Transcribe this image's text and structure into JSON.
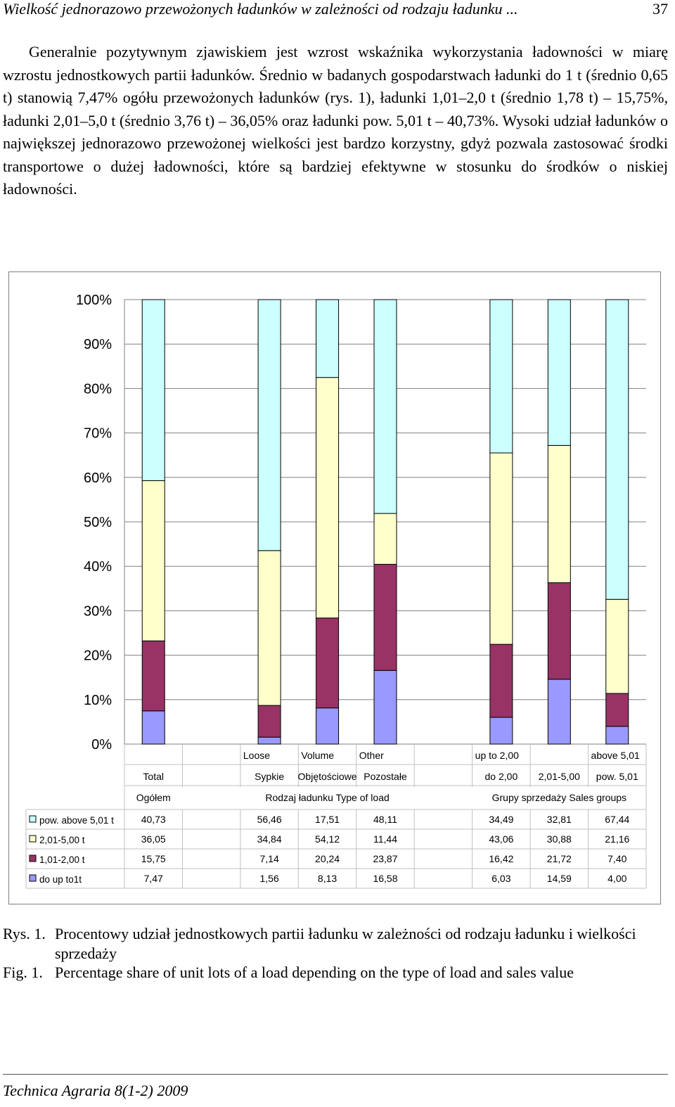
{
  "header": {
    "title": "Wielkość jednorazowo przewożonych ładunków w zależności od rodzaju ładunku ...",
    "page_number": "37"
  },
  "body_text": "Generalnie pozytywnym zjawiskiem jest wzrost wskaźnika wykorzystania ładowności w miarę wzrostu jednostkowych partii ładunków. Średnio w badanych gospodarstwach ładunki do 1 t (średnio 0,65 t) stanowią 7,47% ogółu przewożonych ładunków (rys. 1), ładunki 1,01–2,0 t (średnio 1,78 t) – 15,75%, ładunki 2,01–5,0 t (średnio 3,76 t) – 36,05% oraz ładunki pow. 5,01 t – 40,73%. Wysoki udział ładunków o największej jednorazowo przewożonej wielkości jest bardzo korzystny, gdyż pozwala zastosować środki transportowe o dużej ładowności, które są bardziej efektywne w stosunku do środków o niskiej ładowności.",
  "chart_data": {
    "type": "bar",
    "stacked": true,
    "ylim": [
      0,
      100
    ],
    "yticks": [
      "0%",
      "10%",
      "20%",
      "30%",
      "40%",
      "50%",
      "60%",
      "70%",
      "80%",
      "90%",
      "100%"
    ],
    "categories": [
      "Total Ogółem",
      "Loose Sypkie",
      "Volume Objętościowe",
      "Other Pozostałe",
      "up to 2,00 do 2,00",
      "2,01-5,00",
      "above 5,01 pow. 5,01"
    ],
    "category_labels_row1": [
      "",
      "Loose",
      "Volume",
      "Other",
      "up to 2,00",
      "",
      "above 5,01"
    ],
    "category_labels_row2": [
      "Total",
      "Sypkie",
      "Objętościowe",
      "Pozostałe",
      "do 2,00",
      "2,01-5,00",
      "pow. 5,01"
    ],
    "group_labels": [
      {
        "label": "Ogółem",
        "span": [
          0,
          0
        ]
      },
      {
        "label": "Rodzaj ładunku Type of load",
        "span": [
          1,
          3
        ]
      },
      {
        "label": "Grupy sprzedaży Sales groups",
        "span": [
          4,
          6
        ]
      }
    ],
    "series": [
      {
        "name": "do up to1t",
        "color": "#9999ff",
        "values": [
          7.47,
          1.56,
          8.13,
          16.58,
          6.03,
          14.59,
          4.0
        ],
        "labels": [
          "7,47",
          "1,56",
          "8,13",
          "16,58",
          "6,03",
          "14,59",
          "4,00"
        ]
      },
      {
        "name": "1,01-2,00 t",
        "color": "#993366",
        "values": [
          15.75,
          7.14,
          20.24,
          23.87,
          16.42,
          21.72,
          7.4
        ],
        "labels": [
          "15,75",
          "7,14",
          "20,24",
          "23,87",
          "16,42",
          "21,72",
          "7,40"
        ]
      },
      {
        "name": "2,01-5,00 t",
        "color": "#ffffcc",
        "values": [
          36.05,
          34.84,
          54.12,
          11.44,
          43.06,
          30.88,
          21.16
        ],
        "labels": [
          "36,05",
          "34,84",
          "54,12",
          "11,44",
          "43,06",
          "30,88",
          "21,16"
        ]
      },
      {
        "name": "pow. above 5,01 t",
        "color": "#ccffff",
        "values": [
          40.73,
          56.46,
          17.51,
          48.11,
          34.49,
          32.81,
          67.44
        ],
        "labels": [
          "40,73",
          "56,46",
          "17,51",
          "48,11",
          "34,49",
          "32,81",
          "67,44"
        ]
      }
    ],
    "table_row_order": [
      3,
      2,
      1,
      0
    ],
    "grid": true
  },
  "caption": {
    "rys_label": "Rys. 1.",
    "rys_text": "Procentowy udział jednostkowych partii ładunku w zależności od rodzaju ładunku i wielkości sprzedaży",
    "fig_label": "Fig. 1.",
    "fig_text": "Percentage share of unit lots of a load depending on the type of load and sales value"
  },
  "footer": {
    "journal": "Technica Agraria 8(1-2) 2009"
  }
}
